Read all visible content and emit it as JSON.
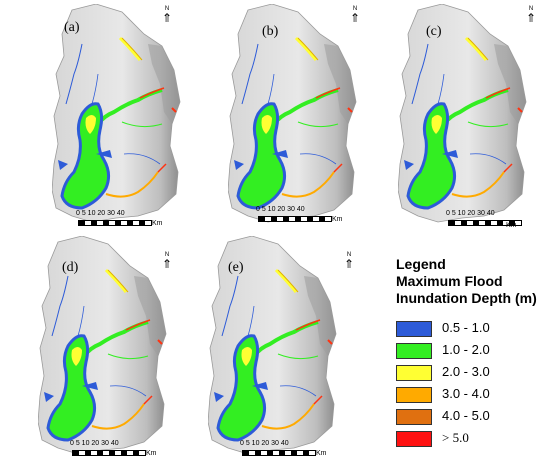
{
  "panels": [
    {
      "label": "(a)"
    },
    {
      "label": "(b)"
    },
    {
      "label": "(c)"
    },
    {
      "label": "(d)"
    },
    {
      "label": "(e)"
    }
  ],
  "north_arrow": {
    "letter": "N",
    "symbol": "⇑"
  },
  "scale_bar": {
    "ticks": "0 5 10  20  30  40",
    "unit": "Km"
  },
  "legend": {
    "title_line1": "Legend",
    "title_line2": "Maximum Flood",
    "title_line3": "Inundation Depth (m)",
    "items": [
      {
        "label": "0.5 - 1.0",
        "color": "#2d5bd8"
      },
      {
        "label": "1.0 - 2.0",
        "color": "#33ee22"
      },
      {
        "label": "2.0 - 3.0",
        "color": "#ffff33"
      },
      {
        "label": "3.0 - 4.0",
        "color": "#ffaa00"
      },
      {
        "label": "4.0 - 5.0",
        "color": "#e07010"
      },
      {
        "label": ">  5.0",
        "color": "#ff1111"
      }
    ]
  },
  "colors": {
    "basin_light": "#e6e6e6",
    "basin_mid": "#c8c8c8",
    "basin_dark": "#8c8c8c",
    "river_outline": "#2d5bd8"
  }
}
